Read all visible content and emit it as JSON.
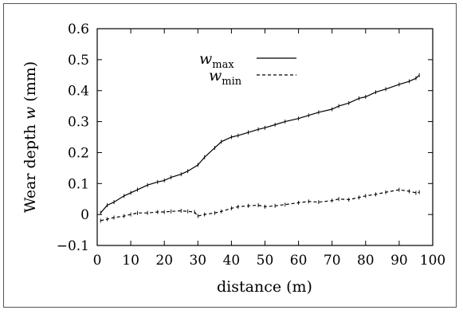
{
  "chart_data": {
    "type": "line",
    "xlabel": "distance (m)",
    "ylabel": "Wear depth w (mm)",
    "ylabel_parts": {
      "main": "Wear depth ",
      "var": "w",
      "unit": " (mm)"
    },
    "xlim": [
      0,
      100
    ],
    "ylim": [
      -0.1,
      0.6
    ],
    "x_ticks": [
      0,
      10,
      20,
      30,
      40,
      50,
      60,
      70,
      80,
      90,
      100
    ],
    "y_ticks": [
      -0.1,
      0,
      0.1,
      0.2,
      0.3,
      0.4,
      0.5,
      0.6
    ],
    "x_tick_labels": [
      "0",
      "10",
      "20",
      "30",
      "40",
      "50",
      "60",
      "70",
      "80",
      "90",
      "100"
    ],
    "y_tick_labels": [
      "−0.1",
      "0",
      "0.1",
      "0.2",
      "0.3",
      "0.4",
      "0.5",
      "0.6"
    ],
    "grid": false,
    "legend_position": "top-center",
    "series": [
      {
        "name": "w_max",
        "legend_base": "w",
        "legend_sub": "max",
        "line_style": "solid",
        "color": "#000000",
        "x": [
          1,
          3,
          5,
          8,
          10,
          12,
          15,
          18,
          20,
          22,
          25,
          27,
          30,
          32,
          35,
          37,
          40,
          42,
          45,
          48,
          50,
          53,
          56,
          60,
          63,
          66,
          70,
          72,
          75,
          78,
          80,
          83,
          86,
          90,
          93,
          95,
          96
        ],
        "y": [
          0.005,
          0.03,
          0.04,
          0.06,
          0.07,
          0.08,
          0.095,
          0.105,
          0.11,
          0.12,
          0.13,
          0.14,
          0.16,
          0.185,
          0.215,
          0.235,
          0.25,
          0.255,
          0.265,
          0.275,
          0.28,
          0.29,
          0.3,
          0.31,
          0.32,
          0.33,
          0.34,
          0.35,
          0.36,
          0.375,
          0.38,
          0.395,
          0.405,
          0.42,
          0.43,
          0.44,
          0.45
        ]
      },
      {
        "name": "w_min",
        "legend_base": "w",
        "legend_sub": "min",
        "line_style": "dashed",
        "color": "#000000",
        "x": [
          1,
          3,
          5,
          8,
          10,
          12,
          15,
          18,
          20,
          22,
          25,
          27,
          29,
          30,
          32,
          35,
          37,
          40,
          42,
          45,
          48,
          50,
          53,
          56,
          60,
          63,
          66,
          70,
          72,
          75,
          78,
          80,
          83,
          86,
          90,
          93,
          95,
          96
        ],
        "y": [
          -0.02,
          -0.015,
          -0.01,
          -0.005,
          0.0,
          0.005,
          0.005,
          0.008,
          0.008,
          0.01,
          0.012,
          0.01,
          0.008,
          -0.005,
          0.0,
          0.005,
          0.01,
          0.02,
          0.025,
          0.028,
          0.03,
          0.025,
          0.028,
          0.032,
          0.038,
          0.042,
          0.04,
          0.045,
          0.05,
          0.048,
          0.055,
          0.06,
          0.065,
          0.072,
          0.08,
          0.075,
          0.07,
          0.072
        ]
      }
    ]
  }
}
